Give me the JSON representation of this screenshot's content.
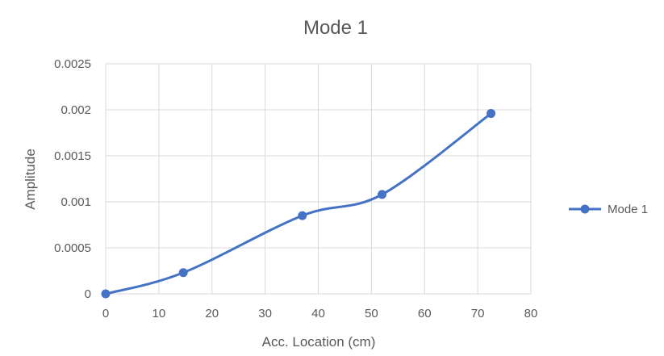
{
  "chart_data": {
    "type": "line",
    "title": "Mode 1",
    "xlabel": "Acc. Location (cm)",
    "ylabel": "Amplitude",
    "xlim": [
      0,
      80
    ],
    "ylim": [
      0,
      0.0025
    ],
    "x_ticks": [
      0,
      10,
      20,
      30,
      40,
      50,
      60,
      70,
      80
    ],
    "y_ticks": [
      0,
      0.0005,
      0.001,
      0.0015,
      0.002,
      0.0025
    ],
    "x_tick_labels": [
      "0",
      "10",
      "20",
      "30",
      "40",
      "50",
      "60",
      "70",
      "80"
    ],
    "y_tick_labels": [
      "0",
      "0.0005",
      "0.001",
      "0.0015",
      "0.002",
      "0.0025"
    ],
    "grid": true,
    "smooth": true,
    "legend_position": "right",
    "series": [
      {
        "name": "Mode 1",
        "color": "#4472c4",
        "marker": "circle",
        "points": [
          {
            "x": 0,
            "y": 0
          },
          {
            "x": 14.6,
            "y": 0.00023
          },
          {
            "x": 37,
            "y": 0.00085
          },
          {
            "x": 52,
            "y": 0.00108
          },
          {
            "x": 72.5,
            "y": 0.00196
          }
        ]
      }
    ]
  }
}
